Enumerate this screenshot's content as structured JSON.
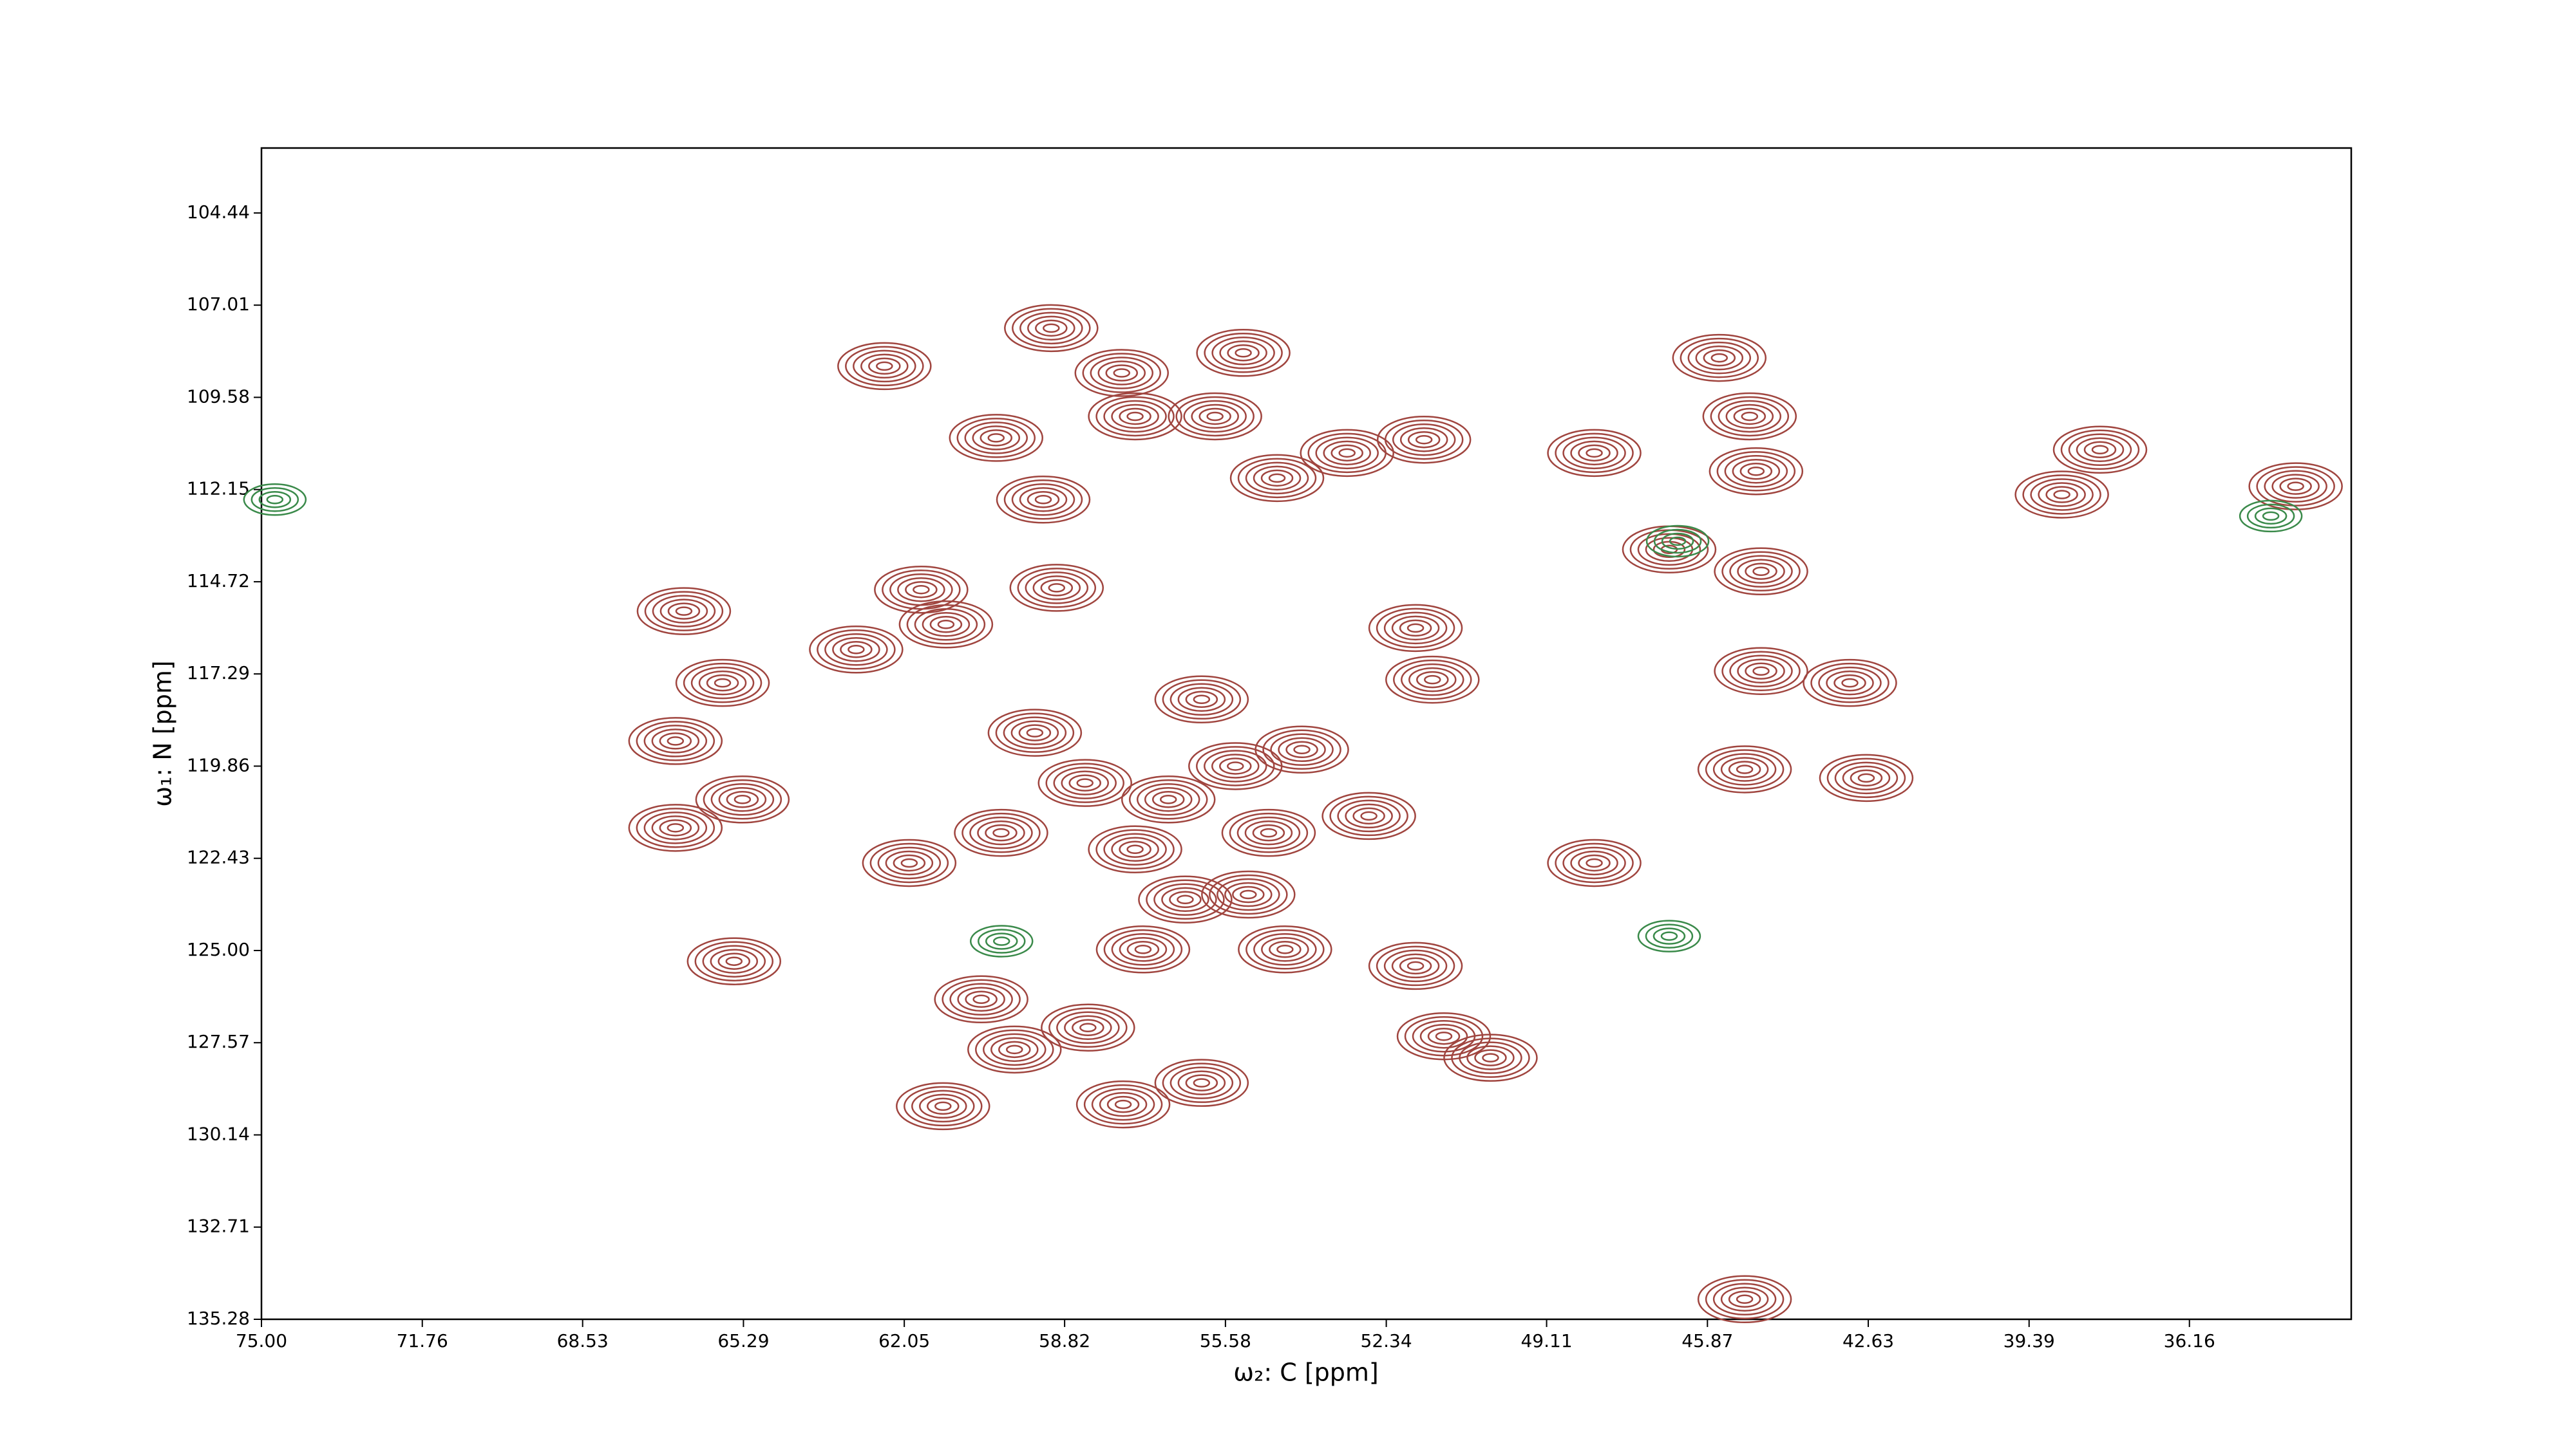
{
  "chart_data": {
    "type": "contour",
    "xlabel": "ω₂: C [ppm]",
    "ylabel": "ω₁: N [ppm]",
    "xlim": [
      75.0,
      32.9
    ],
    "ylim": [
      135.28,
      102.63
    ],
    "xticks": [
      {
        "value": 75.0,
        "label": "75.00"
      },
      71.76,
      68.53,
      65.29,
      62.05,
      58.82,
      55.58,
      52.34,
      49.11,
      45.87,
      42.63,
      39.39,
      36.16
    ],
    "yticks": [
      104.44,
      107.01,
      109.58,
      112.15,
      114.72,
      117.29,
      119.86,
      122.43,
      {
        "value": 125.0,
        "label": "125.00"
      },
      127.57,
      130.14,
      132.71,
      135.28
    ],
    "peaks": {
      "color": "#a0453f",
      "x": [
        59.09,
        62.45,
        57.67,
        55.22,
        57.4,
        55.79,
        60.2,
        53.13,
        51.58,
        48.15,
        45.63,
        45.02,
        44.89,
        59.25,
        54.54,
        61.71,
        58.98,
        66.49,
        61.21,
        63.02,
        65.71,
        51.75,
        51.41,
        44.79,
        43.0,
        66.66,
        65.31,
        66.66,
        61.95,
        48.15,
        45.12,
        42.67,
        57.24,
        54.38,
        56.39,
        55.12,
        60.5,
        51.75,
        59.83,
        58.35,
        51.18,
        50.24,
        61.27,
        57.64,
        56.06,
        65.48,
        45.12,
        37.96,
        38.73,
        34.02,
        46.64,
        44.79,
        58.41,
        56.73,
        54.71,
        59.42,
        56.06,
        54.04,
        52.69,
        60.1,
        57.4,
        55.38
      ],
      "y": [
        107.65,
        108.71,
        108.9,
        108.34,
        110.11,
        110.11,
        110.71,
        111.13,
        110.76,
        111.13,
        108.48,
        110.11,
        111.64,
        112.43,
        111.83,
        114.94,
        114.89,
        115.54,
        115.91,
        116.61,
        117.54,
        116.01,
        117.45,
        117.21,
        117.54,
        119.16,
        120.79,
        121.58,
        122.56,
        122.56,
        119.95,
        120.19,
        124.97,
        124.97,
        123.58,
        123.44,
        126.36,
        125.43,
        127.76,
        127.15,
        127.39,
        127.99,
        129.34,
        129.29,
        128.69,
        125.3,
        134.72,
        111.04,
        112.29,
        112.06,
        113.82,
        114.43,
        120.33,
        120.79,
        121.72,
        118.93,
        118.0,
        119.4,
        121.25,
        121.72,
        122.18,
        119.86
      ]
    },
    "negative_peaks": {
      "color": "#3a8a4a",
      "x": [
        60.09,
        46.64,
        46.47,
        34.52,
        74.73
      ],
      "y": [
        124.74,
        124.6,
        113.59,
        112.89,
        112.43
      ]
    }
  }
}
